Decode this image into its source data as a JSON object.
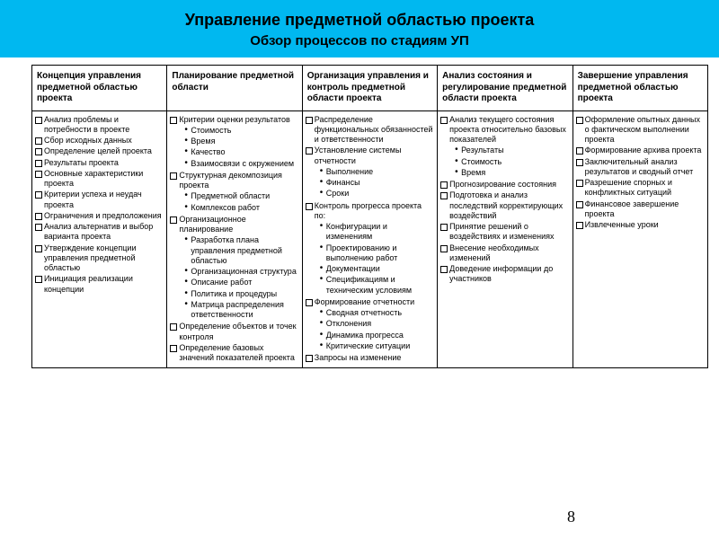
{
  "header": {
    "title": "Управление предметной областью проекта",
    "subtitle": "Обзор процессов по стадиям  УП"
  },
  "page_number": "8",
  "columns": [
    {
      "title": "Концепция управления предметной областью проекта",
      "items": [
        {
          "t": "Анализ проблемы и потребности в проекте"
        },
        {
          "t": "Сбор исходных данных"
        },
        {
          "t": "Определение целей проекта"
        },
        {
          "t": "Результаты проекта"
        },
        {
          "t": "Основные характеристики проекта"
        },
        {
          "t": "Критерии успеха и неудач проекта"
        },
        {
          "t": "Ограничения и предположения"
        },
        {
          "t": "Анализ альтернатив и выбор варианта проекта"
        },
        {
          "t": "Утверждение концепции управления предметной областью"
        },
        {
          "t": "Инициация реализации концепции"
        }
      ]
    },
    {
      "title": "Планирование предметной области",
      "items": [
        {
          "t": "Критерии оценки результатов",
          "sub": [
            "Стоимость",
            "Время",
            "Качество",
            "Взаимосвязи с окружением"
          ]
        },
        {
          "t": "Структурная декомпозиция проекта",
          "sub": [
            "Предметной области",
            "Комплексов работ"
          ]
        },
        {
          "t": "Организационное планирование",
          "sub": [
            "Разработка плана управления предметной областью",
            "Организационная структура",
            "Описание работ",
            "Политика и процедуры",
            "Матрица распределения ответственности"
          ]
        },
        {
          "t": "Определение объектов и точек контроля"
        },
        {
          "t": "Определение базовых значений показателей проекта"
        }
      ]
    },
    {
      "title": "Организация управления и контроль предметной области проекта",
      "items": [
        {
          "t": "Распределение функциональных обязанностей и ответственности"
        },
        {
          "t": "Установление системы отчетности",
          "sub": [
            "Выполнение",
            "Финансы",
            "Сроки"
          ]
        },
        {
          "t": "Контроль прогресса проекта по:",
          "sub": [
            "Конфигурации и изменениям",
            "Проектированию и выполнению работ",
            "Документации",
            "Спецификациям и техническим условиям"
          ]
        },
        {
          "t": "Формирование отчетности",
          "sub": [
            "Сводная отчетность",
            "Отклонения",
            " Динамика прогресса",
            "Критические ситуации"
          ]
        },
        {
          "t": "Запросы на изменение"
        }
      ]
    },
    {
      "title": "Анализ состояния и регулирование предметной области проекта",
      "items": [
        {
          "t": "Анализ текущего состояния проекта относительно базовых показателей",
          "sub": [
            " Результаты",
            "Стоимость",
            "Время"
          ]
        },
        {
          "t": " Прогнозирование состояния"
        },
        {
          "t": "Подготовка и анализ последствий корректирующих воздействий"
        },
        {
          "t": "Принятие решений о воздействиях и изменениях"
        },
        {
          "t": "Внесение необходимых изменений"
        },
        {
          "t": " Доведение информации до участников"
        }
      ]
    },
    {
      "title": "Завершение управления предметной областью проекта",
      "items": [
        {
          "t": "Оформление опытных данных о фактическом выполнении проекта"
        },
        {
          "t": "Формирование архива проекта"
        },
        {
          "t": " Заключительный анализ результатов и сводный отчет"
        },
        {
          "t": " Разрешение спорных  и конфликтных ситуаций"
        },
        {
          "t": "Финансовое завершение проекта"
        },
        {
          "t": " Извлеченные уроки"
        }
      ]
    }
  ],
  "style": {
    "header_bg": "#00b8f0",
    "border": "#000000",
    "square_marker": "hollow-square",
    "bullet_marker": "disc",
    "header_font_size": 10,
    "body_font_size": 9
  }
}
